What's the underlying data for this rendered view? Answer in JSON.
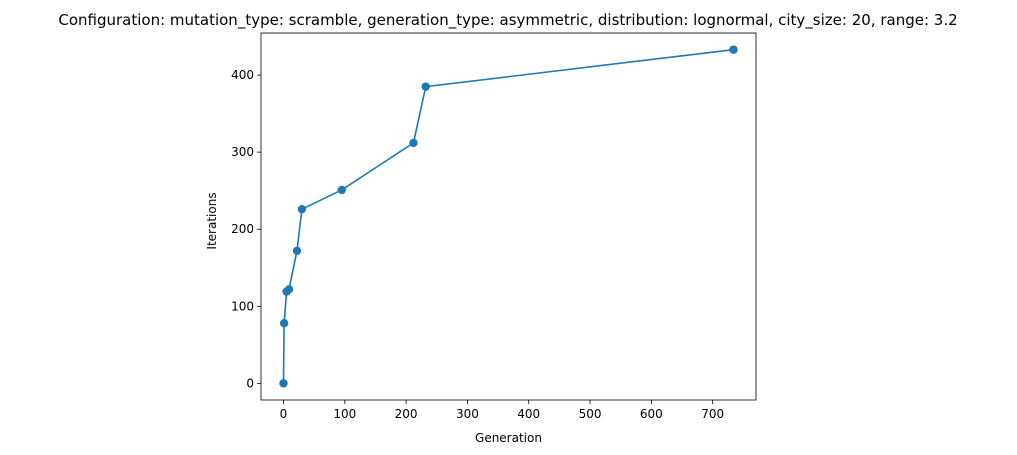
{
  "chart_data": {
    "type": "line",
    "title": "Configuration: mutation_type: scramble, generation_type: asymmetric, distribution: lognormal, city_size: 20, range: 3.2",
    "xlabel": "Generation",
    "ylabel": "Iterations",
    "xlim": [
      -36.7,
      770.7
    ],
    "ylim": [
      -21.6,
      454.6
    ],
    "xticks": [
      0,
      100,
      200,
      300,
      400,
      500,
      600,
      700
    ],
    "yticks": [
      0,
      100,
      200,
      300,
      400
    ],
    "grid": false,
    "series": [
      {
        "color": "#1f77b4",
        "marker": "circle",
        "x": [
          0,
          1,
          5,
          9,
          22,
          30,
          95,
          212,
          232,
          734
        ],
        "y": [
          0,
          78,
          119,
          122,
          172,
          226,
          251,
          312,
          385,
          433
        ]
      }
    ]
  }
}
